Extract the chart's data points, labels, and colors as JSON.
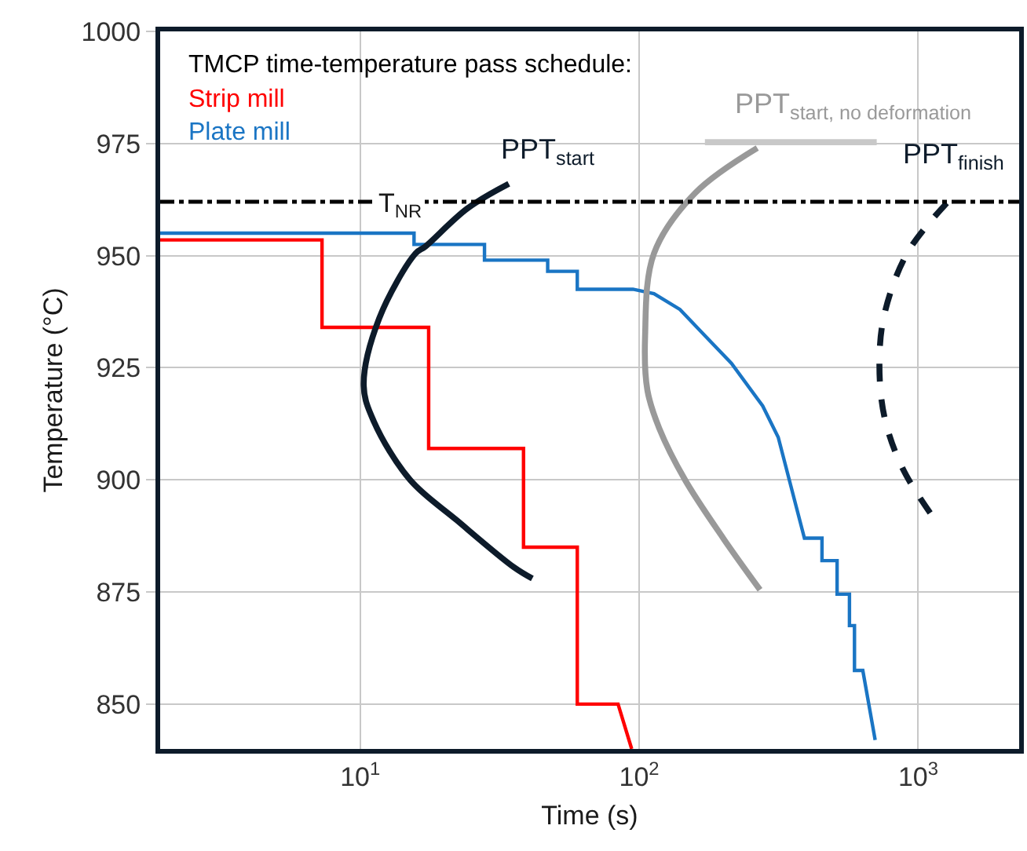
{
  "chart_data": {
    "type": "line",
    "xlabel": "Time (s)",
    "ylabel": "Temperature (°C)",
    "legend_title": "TMCP time-temperature pass schedule:",
    "log": "x",
    "xlim": [
      1.92,
      2300
    ],
    "ylim": [
      840,
      1000
    ],
    "xticks": [
      {
        "value": 10,
        "label": "10$^{1}$"
      },
      {
        "value": 100,
        "label": "10$^{2}$"
      },
      {
        "value": 1000,
        "label": "10$^{3}$"
      }
    ],
    "yticks": [
      850,
      875,
      900,
      925,
      950,
      975,
      1000
    ],
    "grid": true,
    "legend": "top left",
    "series": [
      {
        "name": "Strip mill",
        "color": "#ff0000",
        "x": [
          1.92,
          7.3,
          7.3,
          17.6,
          17.6,
          38.5,
          38.5,
          60,
          60,
          84,
          94
        ],
        "values": [
          953.5,
          953.5,
          934,
          934,
          907,
          907,
          885,
          885,
          850,
          850,
          840
        ]
      },
      {
        "name": "Plate mill",
        "color": "#1a75c4",
        "x": [
          1.92,
          15.6,
          15.6,
          27.9,
          27.9,
          47,
          47,
          60,
          60,
          95,
          113,
          140,
          173,
          214,
          277,
          315,
          391,
          452,
          452,
          512,
          512,
          567,
          567,
          591,
          591,
          633,
          701
        ],
        "values": [
          955,
          955,
          952.5,
          952.5,
          949,
          949,
          946.5,
          946.5,
          942.5,
          942.5,
          941.5,
          938,
          932,
          926,
          916.5,
          909.5,
          887,
          887,
          882,
          882,
          874.5,
          874.5,
          867.5,
          867.5,
          857.5,
          857.5,
          842
        ]
      },
      {
        "name": "PPT$_{start}$",
        "color": "#0d1b2a",
        "x": [
          34.1,
          24.2,
          17.1,
          15.8,
          11.7,
          10.3,
          11.2,
          15.1,
          22.2,
          35.6,
          41.4
        ],
        "values": [
          966,
          960.5,
          952,
          950.5,
          936,
          921,
          913,
          900,
          891,
          880.5,
          878
        ]
      },
      {
        "name": "PPT$_{start, no deformation}$",
        "color": "#999999",
        "x": [
          265,
          159,
          113,
          105,
          107,
          118,
          146,
          200,
          271
        ],
        "values": [
          974,
          964,
          950.5,
          932,
          920,
          911.5,
          900,
          887,
          875.5
        ]
      },
      {
        "color": "#c8c8c8",
        "x": [
          172,
          710
        ],
        "values": [
          975.3,
          975.3
        ]
      },
      {
        "name": "PPT$_{finish}$",
        "color": "#0d1b2a",
        "line_style": "dashed",
        "x": [
          1265,
          914,
          757,
          726,
          757,
          880,
          1151
        ],
        "values": [
          961.7,
          950.6,
          937,
          926,
          914,
          902.5,
          891
        ]
      }
    ],
    "ref_lines": [
      {
        "axis": "y",
        "value": 962,
        "label": "T$_{NR}$",
        "color": "#000000",
        "line_style": "dashdot"
      }
    ]
  }
}
